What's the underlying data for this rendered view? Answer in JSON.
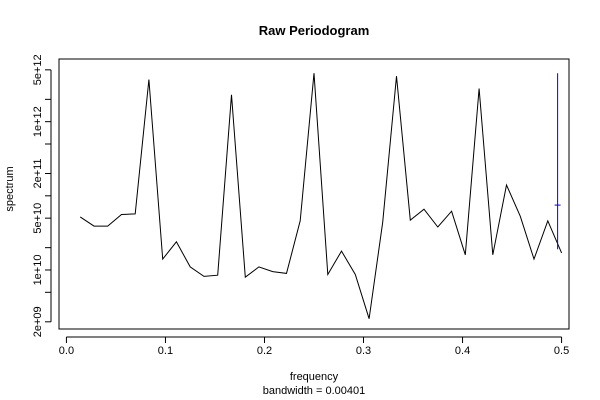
{
  "chart_data": {
    "type": "line",
    "title": "Raw Periodogram",
    "xlabel": "frequency",
    "sublabel": "bandwidth = 0.00401",
    "ylabel": "spectrum",
    "xlim": [
      -0.0075,
      0.5075
    ],
    "ylim": [
      1600000000.0,
      7000000000000.0
    ],
    "yscale": "log",
    "x_ticks": [
      0.0,
      0.1,
      0.2,
      0.3,
      0.4,
      0.5
    ],
    "x_tick_labels": [
      "0.0",
      "0.1",
      "0.2",
      "0.3",
      "0.4",
      "0.5"
    ],
    "y_ticks": [
      2000000000.0,
      10000000000.0,
      50000000000.0,
      200000000000.0,
      1000000000000.0,
      5000000000000.0
    ],
    "y_tick_labels": [
      "2e+09",
      "1e+10",
      "5e+10",
      "2e+11",
      "1e+12",
      "5e+12"
    ],
    "y_minor_ticks": [
      5000000000.0,
      20000000000.0,
      100000000000.0,
      500000000000.0,
      2000000000000.0
    ],
    "series": [
      {
        "color": "#000000",
        "x": [
          0.0139,
          0.0278,
          0.0417,
          0.0556,
          0.0694,
          0.0833,
          0.0972,
          0.1111,
          0.125,
          0.1389,
          0.1528,
          0.1667,
          0.1806,
          0.1944,
          0.2083,
          0.2222,
          0.2361,
          0.25,
          0.2639,
          0.2778,
          0.2917,
          0.3056,
          0.3194,
          0.3333,
          0.3472,
          0.3611,
          0.375,
          0.3889,
          0.4028,
          0.4167,
          0.4306,
          0.4444,
          0.4583,
          0.4722,
          0.4861,
          0.5
        ],
        "y": [
          52000000000.0,
          39000000000.0,
          39000000000.0,
          56000000000.0,
          57000000000.0,
          3700000000000.0,
          14000000000.0,
          24000000000.0,
          11000000000.0,
          8200000000.0,
          8500000000.0,
          2300000000000.0,
          8000000000.0,
          11000000000.0,
          9500000000.0,
          9000000000.0,
          46000000000.0,
          4500000000000.0,
          8700000000.0,
          18000000000.0,
          8700000000.0,
          2200000000.0,
          44000000000.0,
          4100000000000.0,
          47000000000.0,
          66000000000.0,
          38000000000.0,
          62000000000.0,
          16000000000.0,
          2800000000000.0,
          16000000000.0,
          140000000000.0,
          53000000000.0,
          14000000000.0,
          46000000000.0,
          17000000000.0
        ]
      }
    ],
    "confidence_interval": {
      "color": "#0000ff",
      "x": 0.496,
      "lower": 19000000000.0,
      "upper": 4500000000000.0,
      "center": 75000000000.0
    }
  }
}
